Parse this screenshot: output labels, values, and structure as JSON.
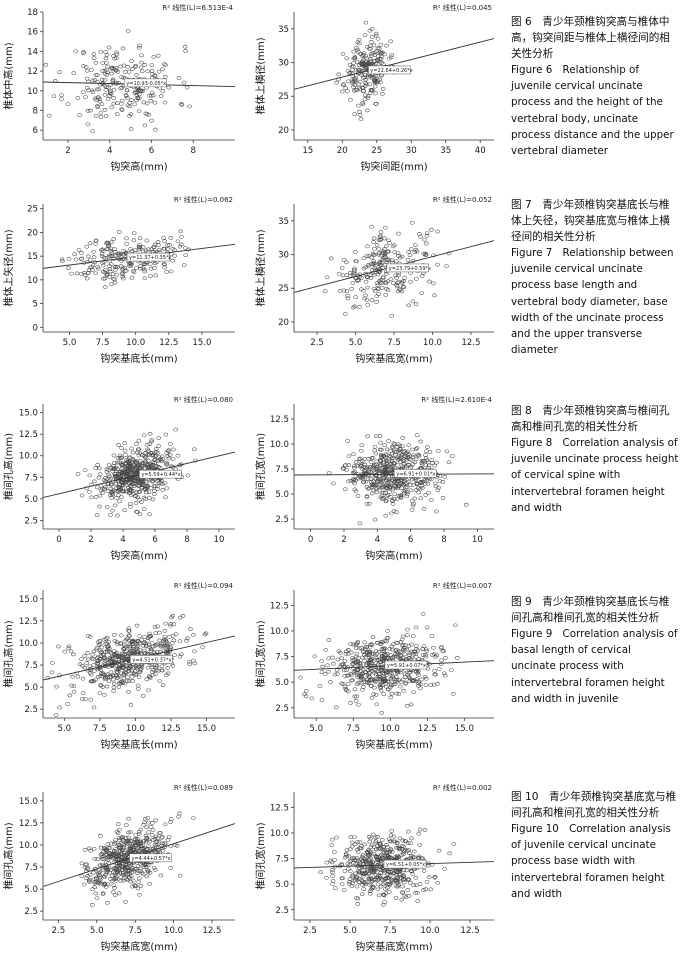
{
  "figures": [
    {
      "id": "fig6",
      "caption_zh": "图 6　青少年颈椎钩突高与椎体中高，钩突间距与椎体上横径间的相关性分析",
      "caption_en": "Figure 6　Relationship of juvenile cervical uncinate process and the height of the vertebral body, uncinate process distance and the upper vertebral diameter"
    },
    {
      "id": "fig7",
      "caption_zh": "图 7　青少年颈椎钩突基底长与椎体上矢径，钩突基底宽与椎体上横径间的相关性分析",
      "caption_en": "Figure 7　Relationship between juvenile cervical uncinate process base length and vertebral body diameter, base width of the uncinate process and the upper transverse diameter"
    },
    {
      "id": "fig8",
      "caption_zh": "图 8　青少年颈椎钩突高与椎间孔高和椎间孔宽的相关性分析",
      "caption_en": "Figure 8　Correlation analysis of juvenile uncinate process height of cervical spine with intervertebral foramen height and width"
    },
    {
      "id": "fig9",
      "caption_zh": "图 9　青少年颈椎钩突基底长与椎间孔高和椎间孔宽的相关性分析",
      "caption_en": "Figure 9　Correlation analysis of basal length of cervical uncinate process with intervertebral foramen height and width in juvenile"
    },
    {
      "id": "fig10",
      "caption_zh": "图 10　青少年颈椎钩突基底宽与椎间孔高和椎间孔宽的相关性分析",
      "caption_en": "Figure 10　Correlation analysis of juvenile cervical uncinate process base width with intervertebral foramen height and width"
    }
  ],
  "chart_data": [
    {
      "id": "p6a",
      "type": "scatter",
      "xlabel": "钩突高(mm)",
      "ylabel": "椎体中高(mm)",
      "r2": "R² 线性(L)=6.513E-4",
      "fit_label": "y=10.93-0.05*x",
      "xlim": [
        0.8,
        10
      ],
      "ylim": [
        5,
        18
      ],
      "xticks": [
        2,
        4,
        6,
        8
      ],
      "yticks": [
        6,
        8,
        10,
        12,
        14,
        16,
        18
      ],
      "fit": [
        10.93,
        -0.05
      ],
      "cx": 4.6,
      "cy": 10.7,
      "sx": 1.3,
      "sy": 2.2,
      "n": 230,
      "seed": 11
    },
    {
      "id": "p6b",
      "type": "scatter",
      "xlabel": "钩突间距(mm)",
      "ylabel": "椎体上横径(mm)",
      "r2": "R² 线性(L)=0.045",
      "fit_label": "y=22.64+0.26*x",
      "xlim": [
        13,
        42
      ],
      "ylim": [
        18.5,
        37.5
      ],
      "xticks": [
        15,
        20,
        25,
        30,
        35,
        40
      ],
      "yticks": [
        20,
        25,
        30,
        35
      ],
      "fit": [
        22.64,
        0.26
      ],
      "cx": 23.5,
      "cy": 28.8,
      "sx": 1.6,
      "sy": 2.6,
      "n": 230,
      "seed": 23
    },
    {
      "id": "p7a",
      "type": "scatter",
      "xlabel": "钩突基底长(mm)",
      "ylabel": "椎体上矢径(mm)",
      "r2": "R² 线性(L)=0.062",
      "fit_label": "y=11.37+0.35*x",
      "xlim": [
        3,
        17.5
      ],
      "ylim": [
        -1,
        26
      ],
      "xticks": [
        5.0,
        7.5,
        10.0,
        12.5,
        15.0
      ],
      "yticks": [
        0,
        5,
        10,
        15,
        20,
        25
      ],
      "fit": [
        11.37,
        0.35
      ],
      "cx": 9.2,
      "cy": 14.8,
      "sx": 2.0,
      "sy": 2.6,
      "n": 240,
      "seed": 37
    },
    {
      "id": "p7b",
      "type": "scatter",
      "xlabel": "钩突基底宽(mm)",
      "ylabel": "椎体上横径(mm)",
      "r2": "R² 线性(L)=0.052",
      "fit_label": "y=23.79+0.59*x",
      "xlim": [
        1,
        14
      ],
      "ylim": [
        18.5,
        37.5
      ],
      "xticks": [
        2.5,
        5.0,
        7.5,
        10.0,
        12.5
      ],
      "yticks": [
        20,
        25,
        30,
        35
      ],
      "fit": [
        23.79,
        0.59
      ],
      "cx": 6.9,
      "cy": 28.2,
      "sx": 1.6,
      "sy": 2.8,
      "n": 240,
      "seed": 41
    },
    {
      "id": "p8a",
      "type": "scatter",
      "xlabel": "钩突高(mm)",
      "ylabel": "椎间孔高(mm)",
      "r2": "R² 线性(L)=0.080",
      "fit_label": "y=5.59+0.44*x",
      "xlim": [
        -1,
        11
      ],
      "ylim": [
        1.5,
        16
      ],
      "xticks": [
        0,
        2,
        4,
        6,
        8,
        10
      ],
      "yticks": [
        2.5,
        5.0,
        7.5,
        10.0,
        12.5,
        15.0
      ],
      "fit": [
        5.59,
        0.44
      ],
      "cx": 4.9,
      "cy": 7.8,
      "sx": 1.3,
      "sy": 1.8,
      "n": 520,
      "seed": 53
    },
    {
      "id": "p8b",
      "type": "scatter",
      "xlabel": "钩突高(mm)",
      "ylabel": "椎间孔宽(mm)",
      "r2": "R² 线性(L)=2.610E-4",
      "fit_label": "y=6.91+0.01*x",
      "xlim": [
        -1,
        11
      ],
      "ylim": [
        1.5,
        14
      ],
      "xticks": [
        0,
        2,
        4,
        6,
        8,
        10
      ],
      "yticks": [
        2.5,
        5.0,
        7.5,
        10.0,
        12.5
      ],
      "fit": [
        6.91,
        0.01
      ],
      "cx": 4.9,
      "cy": 6.9,
      "sx": 1.3,
      "sy": 1.6,
      "n": 520,
      "seed": 67
    },
    {
      "id": "p9a",
      "type": "scatter",
      "xlabel": "钩突基底长(mm)",
      "ylabel": "椎间孔高(mm)",
      "r2": "R² 线性(L)=0.094",
      "fit_label": "y=4.51+0.37*x",
      "xlim": [
        3.5,
        17
      ],
      "ylim": [
        1.5,
        16
      ],
      "xticks": [
        5.0,
        7.5,
        10.0,
        12.5,
        15.0
      ],
      "yticks": [
        2.5,
        5.0,
        7.5,
        10.0,
        12.5,
        15.0
      ],
      "fit": [
        4.51,
        0.37
      ],
      "cx": 9.5,
      "cy": 8.0,
      "sx": 2.0,
      "sy": 1.8,
      "n": 520,
      "seed": 71
    },
    {
      "id": "p9b",
      "type": "scatter",
      "xlabel": "钩突基底长(mm)",
      "ylabel": "椎间孔宽(mm)",
      "r2": "R² 线性(L)=0.007",
      "fit_label": "y=5.91+0.07*x",
      "xlim": [
        3.5,
        17
      ],
      "ylim": [
        1.5,
        14
      ],
      "xticks": [
        5.0,
        7.5,
        10.0,
        12.5,
        15.0
      ],
      "yticks": [
        2.5,
        5.0,
        7.5,
        10.0,
        12.5
      ],
      "fit": [
        5.91,
        0.07
      ],
      "cx": 9.5,
      "cy": 7.0,
      "sx": 2.0,
      "sy": 1.6,
      "n": 520,
      "seed": 83
    },
    {
      "id": "p10a",
      "type": "scatter",
      "xlabel": "钩突基底宽(mm)",
      "ylabel": "椎间孔高(mm)",
      "r2": "R² 线性(L)=0.089",
      "fit_label": "y=4.44+0.57*x",
      "xlim": [
        1.5,
        14
      ],
      "ylim": [
        1.5,
        16
      ],
      "xticks": [
        2.5,
        5.0,
        7.5,
        10.0,
        12.5
      ],
      "yticks": [
        2.5,
        5.0,
        7.5,
        10.0,
        12.5,
        15.0
      ],
      "fit": [
        4.44,
        0.57
      ],
      "cx": 7.0,
      "cy": 8.2,
      "sx": 1.4,
      "sy": 1.8,
      "n": 520,
      "seed": 97
    },
    {
      "id": "p10b",
      "type": "scatter",
      "xlabel": "钩突基底宽(mm)",
      "ylabel": "椎间孔宽(mm)",
      "r2": "R² 线性(L)=0.002",
      "fit_label": "y=6.51+0.05*x",
      "xlim": [
        1.5,
        14
      ],
      "ylim": [
        1.5,
        14
      ],
      "xticks": [
        2.5,
        5.0,
        7.5,
        10.0,
        12.5
      ],
      "yticks": [
        2.5,
        5.0,
        7.5,
        10.0,
        12.5
      ],
      "fit": [
        6.51,
        0.05
      ],
      "cx": 7.0,
      "cy": 7.0,
      "sx": 1.4,
      "sy": 1.6,
      "n": 520,
      "seed": 101
    }
  ]
}
